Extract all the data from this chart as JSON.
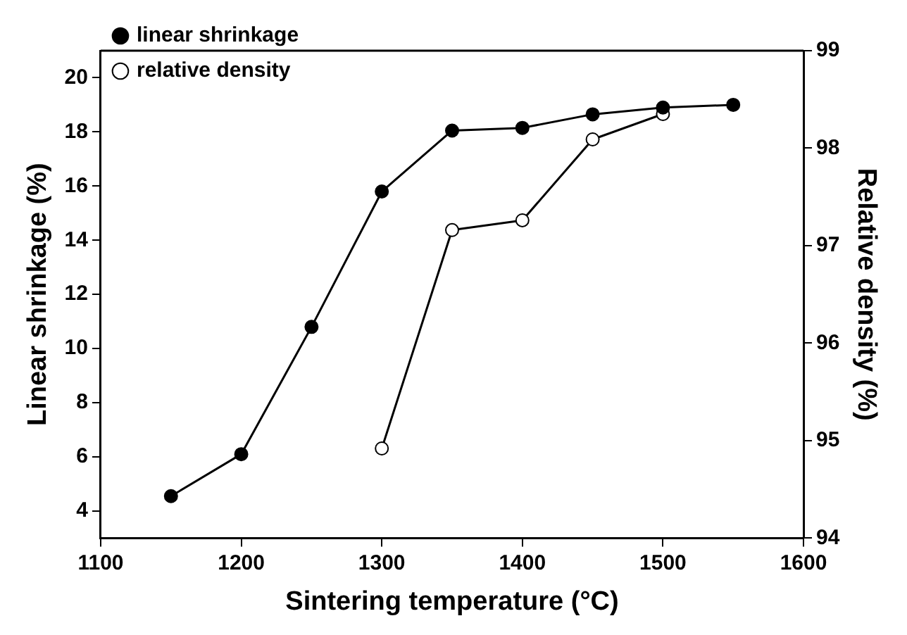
{
  "chart_data": {
    "type": "line",
    "xlabel": "Sintering temperature (°C)",
    "ylabel": "Linear shrinkage (%)",
    "y2label": "Relative density (%)",
    "x": [
      1150,
      1200,
      1250,
      1300,
      1350,
      1400,
      1450,
      1500,
      1550
    ],
    "series": [
      {
        "name": "linear shrinkage",
        "color": "#000000",
        "values": [
          4.55,
          6.1,
          10.8,
          15.8,
          18.05,
          18.15,
          18.65,
          18.9,
          19.0
        ]
      },
      {
        "name": "relative density",
        "color": "#000000",
        "axis": "y2",
        "x": [
          1300,
          1350,
          1400,
          1450,
          1500
        ],
        "values": [
          94.92,
          97.16,
          97.26,
          98.09,
          98.35
        ]
      }
    ],
    "xlim": [
      1100,
      1600
    ],
    "xticks": [
      1100,
      1200,
      1300,
      1400,
      1500,
      1600
    ],
    "ylim": [
      3,
      21
    ],
    "yticks": [
      4,
      6,
      8,
      10,
      12,
      14,
      16,
      18,
      20
    ],
    "y2lim": [
      94,
      99
    ],
    "y2ticks": [
      94,
      95,
      96,
      97,
      98,
      99
    ],
    "legend": "top left",
    "marker": "circle",
    "line_style": "solid",
    "grid": false
  }
}
